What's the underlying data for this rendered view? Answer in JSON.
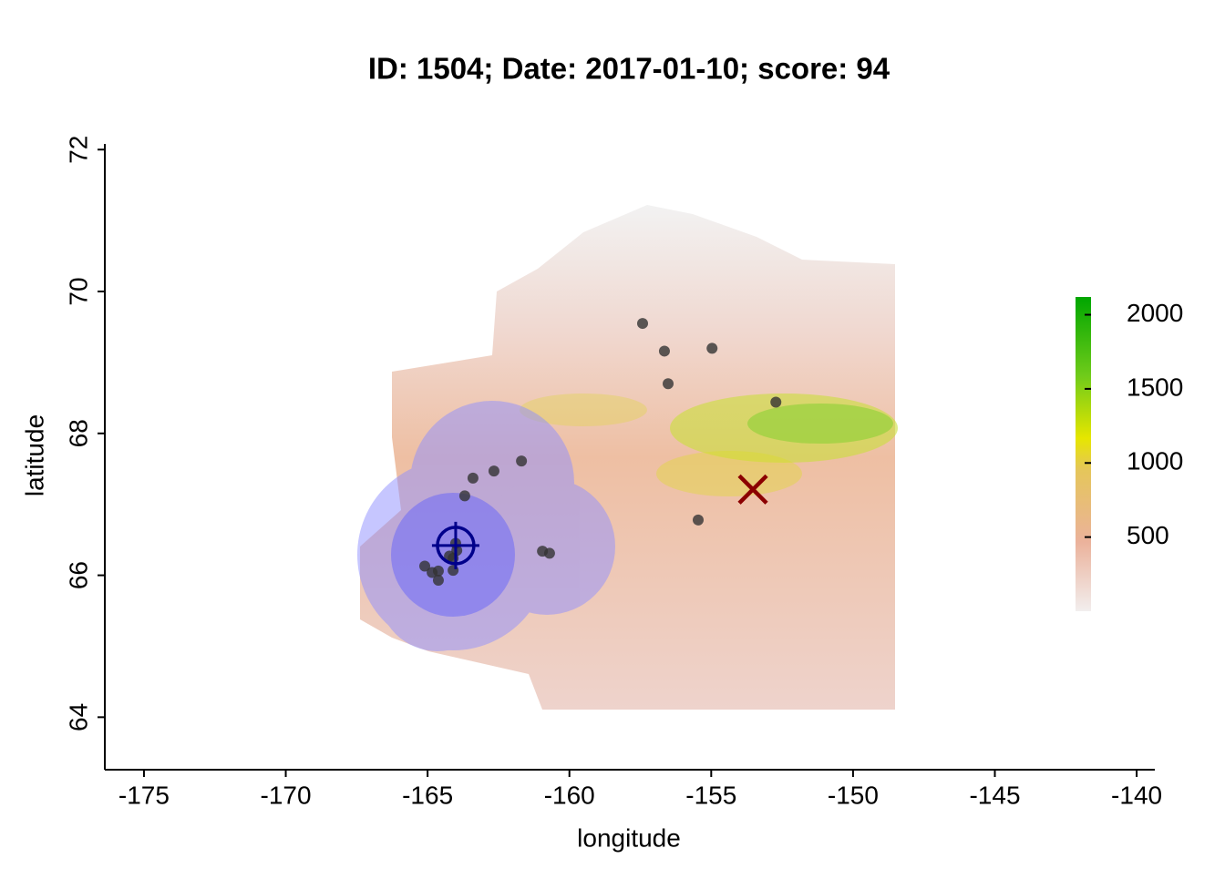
{
  "chart_data": {
    "type": "scatter",
    "title": "ID: 1504;  Date: 2017-01-10;  score: 94",
    "x_label": "longitude",
    "y_label": "latitude",
    "xlim": [
      -176.38,
      -139.36
    ],
    "ylim": [
      63.26,
      72.08
    ],
    "xticks": [
      -175,
      -170,
      -165,
      -160,
      -155,
      -150,
      -145,
      -140
    ],
    "yticks": [
      64,
      66,
      68,
      70,
      72
    ],
    "point_color": "#333333",
    "x": [
      -157.42,
      -156.65,
      -154.97,
      -156.52,
      -152.72,
      -161.69,
      -162.66,
      -163.4,
      -163.69,
      -155.46,
      -160.95,
      -160.7,
      -164.01,
      -163.97,
      -164.1,
      -164.23,
      -164.1,
      -165.1,
      -164.84,
      -164.62,
      -164.62
    ],
    "values": [
      69.55,
      69.16,
      69.2,
      68.7,
      68.44,
      67.61,
      67.47,
      67.37,
      67.12,
      66.78,
      66.34,
      66.31,
      66.45,
      66.35,
      66.24,
      66.27,
      66.07,
      66.13,
      66.04,
      66.06,
      65.93
    ],
    "target": {
      "x": -164.01,
      "y": 66.42,
      "color": "#00008b"
    },
    "estimate": {
      "x": -153.53,
      "y": 67.21,
      "color": "#8b0000"
    },
    "colorbar": {
      "lim": [
        0,
        2120
      ],
      "ticks": [
        500,
        1000,
        1500,
        2000
      ]
    }
  }
}
